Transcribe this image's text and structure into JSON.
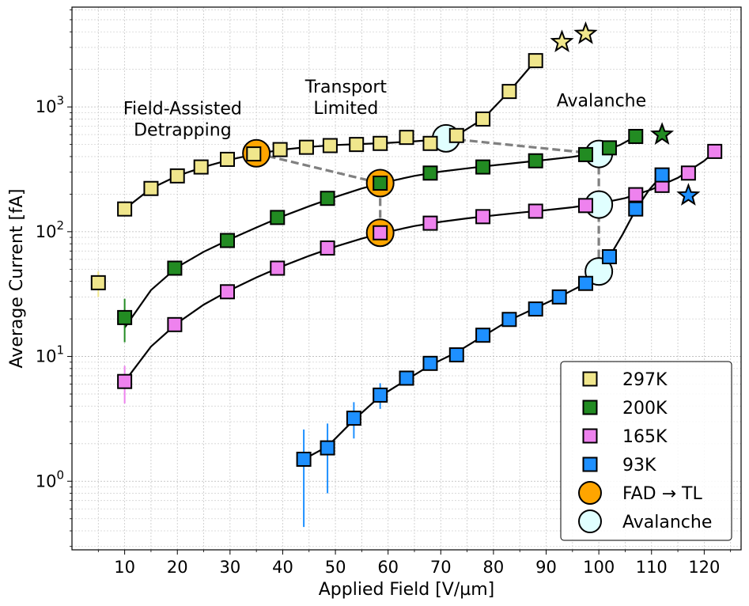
{
  "chart_data": {
    "type": "scatter",
    "xlabel": "Applied Field [V/µm]",
    "ylabel": "Average Current [fA]",
    "xlim": [
      0,
      127
    ],
    "ylim_log10": [
      -0.55,
      3.8
    ],
    "xticks": [
      10,
      20,
      30,
      40,
      50,
      60,
      70,
      80,
      90,
      100,
      110,
      120
    ],
    "ytick_labels": [
      {
        "base": "10",
        "exp": "0",
        "value": 1
      },
      {
        "base": "10",
        "exp": "1",
        "value": 10
      },
      {
        "base": "10",
        "exp": "2",
        "value": 100
      },
      {
        "base": "10",
        "exp": "3",
        "value": 1000
      }
    ],
    "grid": true,
    "series": [
      {
        "name": "297K",
        "color": "#f0e68c",
        "marker": "square",
        "points": [
          {
            "x": 5,
            "y": 39,
            "lo": 30,
            "hi": 48
          },
          {
            "x": 10,
            "y": 152
          },
          {
            "x": 15,
            "y": 222
          },
          {
            "x": 20,
            "y": 280
          },
          {
            "x": 24.5,
            "y": 330
          },
          {
            "x": 29.5,
            "y": 380
          },
          {
            "x": 34.5,
            "y": 420
          },
          {
            "x": 39.5,
            "y": 455
          },
          {
            "x": 44.5,
            "y": 475
          },
          {
            "x": 49,
            "y": 490
          },
          {
            "x": 54,
            "y": 500
          },
          {
            "x": 58.5,
            "y": 510
          },
          {
            "x": 63.5,
            "y": 570
          },
          {
            "x": 68,
            "y": 510
          },
          {
            "x": 73,
            "y": 590
          },
          {
            "x": 78,
            "y": 800
          },
          {
            "x": 83,
            "y": 1330
          },
          {
            "x": 88,
            "y": 2350
          }
        ],
        "fit": [
          [
            10,
            152
          ],
          [
            15,
            222
          ],
          [
            20,
            280
          ],
          [
            25,
            330
          ],
          [
            30,
            378
          ],
          [
            35,
            420
          ],
          [
            40,
            455
          ],
          [
            45,
            478
          ],
          [
            50,
            495
          ],
          [
            55,
            505
          ],
          [
            60,
            515
          ],
          [
            65,
            530
          ],
          [
            70,
            550
          ],
          [
            73,
            590
          ],
          [
            78,
            800
          ],
          [
            83,
            1330
          ],
          [
            88,
            2350
          ]
        ],
        "breakdown": {
          "x": 97.5,
          "y": 3850
        }
      },
      {
        "name": "200K",
        "color": "#228b22",
        "marker": "square",
        "points": [
          {
            "x": 10,
            "y": 20.5,
            "lo": 13,
            "hi": 29
          },
          {
            "x": 19.5,
            "y": 51
          },
          {
            "x": 29.5,
            "y": 85
          },
          {
            "x": 39,
            "y": 130
          },
          {
            "x": 48.5,
            "y": 185
          },
          {
            "x": 58.5,
            "y": 245
          },
          {
            "x": 68,
            "y": 295
          },
          {
            "x": 78,
            "y": 330
          },
          {
            "x": 88,
            "y": 370
          },
          {
            "x": 97.5,
            "y": 415
          },
          {
            "x": 102,
            "y": 470
          },
          {
            "x": 107,
            "y": 580
          }
        ],
        "fit": [
          [
            10,
            17
          ],
          [
            15,
            34
          ],
          [
            20,
            52
          ],
          [
            25,
            69
          ],
          [
            30,
            87
          ],
          [
            35,
            108
          ],
          [
            40,
            133
          ],
          [
            45,
            160
          ],
          [
            50,
            190
          ],
          [
            55,
            222
          ],
          [
            60,
            252
          ],
          [
            65,
            280
          ],
          [
            70,
            303
          ],
          [
            75,
            322
          ],
          [
            80,
            340
          ],
          [
            85,
            358
          ],
          [
            90,
            377
          ],
          [
            95,
            398
          ],
          [
            100,
            430
          ],
          [
            104,
            495
          ],
          [
            107,
            580
          ]
        ],
        "breakdown": {
          "x": 112,
          "y": 600
        }
      },
      {
        "name": "165K",
        "color": "#ee82ee",
        "marker": "square",
        "points": [
          {
            "x": 10,
            "y": 6.3,
            "lo": 4.2,
            "hi": 8.4
          },
          {
            "x": 19.5,
            "y": 18
          },
          {
            "x": 29.5,
            "y": 33
          },
          {
            "x": 39,
            "y": 51
          },
          {
            "x": 48.5,
            "y": 74
          },
          {
            "x": 58.5,
            "y": 98
          },
          {
            "x": 68,
            "y": 117
          },
          {
            "x": 78,
            "y": 132
          },
          {
            "x": 88,
            "y": 146
          },
          {
            "x": 97.5,
            "y": 162
          },
          {
            "x": 107,
            "y": 198
          },
          {
            "x": 112,
            "y": 235
          },
          {
            "x": 117,
            "y": 295
          },
          {
            "x": 122,
            "y": 440
          }
        ],
        "fit": [
          [
            10,
            6.3
          ],
          [
            15,
            12
          ],
          [
            20,
            18.5
          ],
          [
            25,
            26
          ],
          [
            30,
            34
          ],
          [
            35,
            43
          ],
          [
            40,
            53
          ],
          [
            45,
            64
          ],
          [
            50,
            76
          ],
          [
            55,
            88
          ],
          [
            60,
            100
          ],
          [
            65,
            111
          ],
          [
            70,
            120
          ],
          [
            75,
            128
          ],
          [
            80,
            135
          ],
          [
            85,
            142
          ],
          [
            90,
            149
          ],
          [
            95,
            157
          ],
          [
            100,
            168
          ],
          [
            105,
            186
          ],
          [
            110,
            218
          ],
          [
            115,
            270
          ],
          [
            120,
            370
          ],
          [
            122,
            440
          ]
        ],
        "breakdown": null
      },
      {
        "name": "93K",
        "color": "#1e90ff",
        "marker": "square",
        "points": [
          {
            "x": 44,
            "y": 1.5,
            "lo": 0.43,
            "hi": 2.6
          },
          {
            "x": 48.5,
            "y": 1.85,
            "lo": 0.8,
            "hi": 2.9
          },
          {
            "x": 53.5,
            "y": 3.2,
            "lo": 2.2,
            "hi": 4.3
          },
          {
            "x": 58.5,
            "y": 4.9,
            "lo": 3.8,
            "hi": 6.1
          },
          {
            "x": 63.5,
            "y": 6.7
          },
          {
            "x": 68,
            "y": 8.8
          },
          {
            "x": 73,
            "y": 10.3
          },
          {
            "x": 78,
            "y": 14.8
          },
          {
            "x": 83,
            "y": 19.8
          },
          {
            "x": 88,
            "y": 24
          },
          {
            "x": 92.5,
            "y": 30
          },
          {
            "x": 97.5,
            "y": 38.5
          },
          {
            "x": 102,
            "y": 63
          },
          {
            "x": 107,
            "y": 152
          },
          {
            "x": 112,
            "y": 285
          }
        ],
        "fit": [
          [
            44,
            1.5
          ],
          [
            48.5,
            1.9
          ],
          [
            53.5,
            3.1
          ],
          [
            58.5,
            4.8
          ],
          [
            63.5,
            6.5
          ],
          [
            68,
            8.5
          ],
          [
            73,
            10.8
          ],
          [
            78,
            14.5
          ],
          [
            83,
            19.5
          ],
          [
            88,
            24.5
          ],
          [
            92.5,
            30
          ],
          [
            97.5,
            38.5
          ],
          [
            100,
            46
          ],
          [
            102,
            63
          ],
          [
            104.5,
            95
          ],
          [
            107,
            150
          ],
          [
            109.5,
            215
          ],
          [
            112,
            285
          ]
        ],
        "breakdown": {
          "x": 117,
          "y": 195
        }
      }
    ],
    "fad_to_tl": {
      "name": "FAD → TL",
      "color": "#ffa500",
      "points": [
        {
          "x": 35,
          "y": 425
        },
        {
          "x": 58.5,
          "y": 245
        },
        {
          "x": 58.5,
          "y": 98
        }
      ],
      "dashed_path": [
        [
          35,
          425
        ],
        [
          58.5,
          245
        ],
        [
          58.5,
          98
        ]
      ]
    },
    "avalanche": {
      "name": "Avalanche",
      "color": "#e0ffff",
      "points": [
        {
          "x": 71,
          "y": 560
        },
        {
          "x": 100,
          "y": 420
        },
        {
          "x": 100,
          "y": 165
        },
        {
          "x": 100,
          "y": 48
        }
      ],
      "dashed_path": [
        [
          71,
          560
        ],
        [
          100,
          420
        ],
        [
          100,
          165
        ],
        [
          100,
          48
        ]
      ]
    },
    "annotations": [
      {
        "lines": [
          "Field-Assisted",
          "Detrapping"
        ],
        "x": 21,
        "y": 870
      },
      {
        "lines": [
          "Transport",
          "Limited"
        ],
        "x": 52,
        "y": 1300
      },
      {
        "lines": [
          "Avalanche"
        ],
        "x": 100.5,
        "y": 1010
      }
    ],
    "legend": {
      "position": "lower right",
      "entries": [
        {
          "label": "297K",
          "marker": "square",
          "color": "#f0e68c"
        },
        {
          "label": "200K",
          "marker": "square",
          "color": "#228b22"
        },
        {
          "label": "165K",
          "marker": "square",
          "color": "#ee82ee"
        },
        {
          "label": "93K",
          "marker": "square",
          "color": "#1e90ff"
        },
        {
          "label": "FAD → TL",
          "marker": "circle",
          "color": "#ffa500"
        },
        {
          "label": "Avalanche",
          "marker": "circle",
          "color": "#e0ffff"
        }
      ]
    }
  }
}
